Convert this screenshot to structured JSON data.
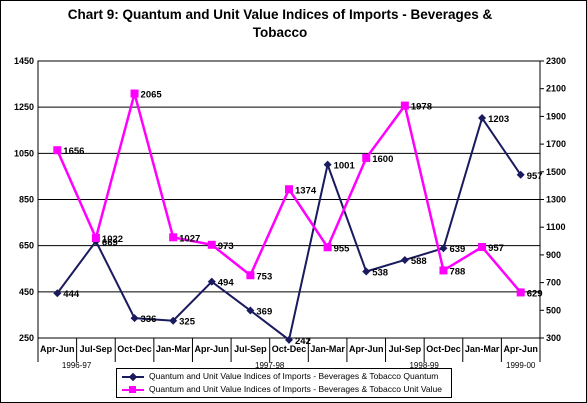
{
  "chart_data": {
    "type": "line",
    "title": "Chart 9: Quantum and Unit Value Indices of Imports - Beverages & Tobacco",
    "categories": [
      "Apr-Jun",
      "Jul-Sep",
      "Oct-Dec",
      "Jan-Mar",
      "Apr-Jun",
      "Jul-Sep",
      "Oct-Dec",
      "Jan-Mar",
      "Apr-Jun",
      "Jul-Sep",
      "Oct-Dec",
      "Jan-Mar",
      "Apr-Jun"
    ],
    "year_labels": [
      "1996-97",
      "1997-98",
      "1998-99",
      "1999-00"
    ],
    "y_left": {
      "ticks": [
        250,
        450,
        650,
        850,
        1050,
        1250,
        1450
      ],
      "range": [
        250,
        1450
      ]
    },
    "y_right": {
      "ticks": [
        300,
        500,
        700,
        900,
        1100,
        1300,
        1500,
        1700,
        1900,
        2100,
        2300
      ],
      "range": [
        300,
        2300
      ]
    },
    "series": [
      {
        "name": "Quantum and Unit Value Indices of Imports - Beverages & Tobacco Quantum",
        "axis": "left",
        "color": "#1a1a5e",
        "marker": "diamond",
        "values": [
          444,
          669,
          336,
          325,
          494,
          369,
          242,
          1001,
          538,
          588,
          639,
          1203,
          957
        ]
      },
      {
        "name": "Quantum and Unit Value Indices of Imports - Beverages & Tobacco Unit Value",
        "axis": "right",
        "color": "#ff00ff",
        "marker": "square",
        "values": [
          1656,
          1022,
          2065,
          1027,
          973,
          753,
          1374,
          955,
          1600,
          1978,
          788,
          957,
          629
        ]
      }
    ],
    "grid": "horizontal",
    "legend_position": "bottom"
  }
}
